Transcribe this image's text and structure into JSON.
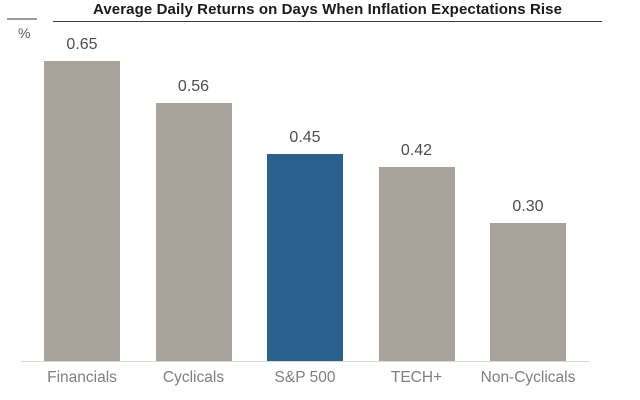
{
  "header": {
    "title": "Average Daily Returns on Days When Inflation Expectations Rise",
    "unit_label": "%"
  },
  "chart_data": {
    "type": "bar",
    "title": "Average Daily Returns on Days When Inflation Expectations Rise",
    "xlabel": "",
    "ylabel": "%",
    "categories": [
      "Financials",
      "Cyclicals",
      "S&P 500",
      "TECH+",
      "Non-Cyclicals"
    ],
    "values": [
      0.65,
      0.56,
      0.45,
      0.42,
      0.3
    ],
    "value_labels": [
      "0.65",
      "0.56",
      "0.45",
      "0.42",
      "0.30"
    ],
    "highlight_category": "S&P 500",
    "highlight_index": 2,
    "bar_color_default": "#a9a29b",
    "bar_color_highlight": "#2a608c",
    "ylim": [
      0,
      0.72
    ],
    "grid": false,
    "legend_position": "none"
  }
}
